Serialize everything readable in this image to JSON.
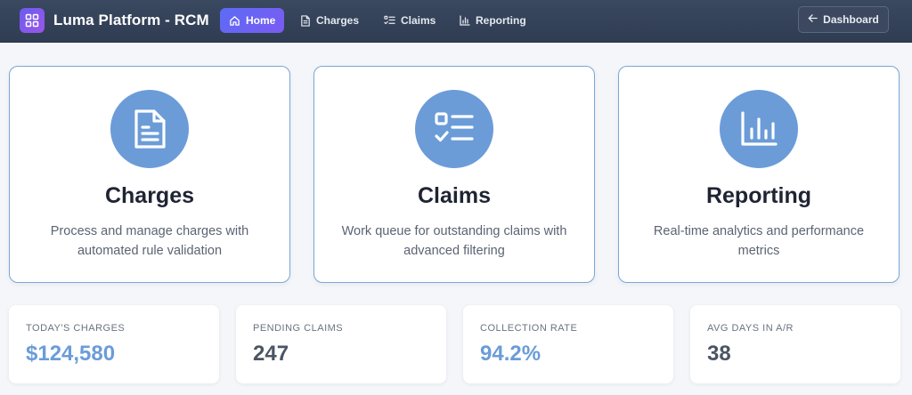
{
  "app": {
    "title": "Luma Platform - RCM"
  },
  "nav": {
    "items": [
      {
        "label": "Home",
        "icon": "home-icon",
        "active": true
      },
      {
        "label": "Charges",
        "icon": "document-icon",
        "active": false
      },
      {
        "label": "Claims",
        "icon": "checklist-icon",
        "active": false
      },
      {
        "label": "Reporting",
        "icon": "bar-chart-icon",
        "active": false
      }
    ],
    "dashboard_label": "Dashboard"
  },
  "cards": [
    {
      "title": "Charges",
      "description": "Process and manage charges with automated rule validation",
      "icon": "document-icon"
    },
    {
      "title": "Claims",
      "description": "Work queue for outstanding claims with advanced filtering",
      "icon": "checklist-icon"
    },
    {
      "title": "Reporting",
      "description": "Real-time analytics and performance metrics",
      "icon": "bar-chart-icon"
    }
  ],
  "stats": [
    {
      "label": "TODAY'S CHARGES",
      "value": "$124,580",
      "color": "#6b9cd8"
    },
    {
      "label": "PENDING CLAIMS",
      "value": "247",
      "color": "#4b5563"
    },
    {
      "label": "COLLECTION RATE",
      "value": "94.2%",
      "color": "#6b9cd8"
    },
    {
      "label": "AVG DAYS IN A/R",
      "value": "38",
      "color": "#4b5563"
    }
  ],
  "colors": {
    "topbar": "#34415a",
    "accent": "#6b9cd8",
    "nav_active": "#6366f1",
    "card_border": "#7aa7d6"
  }
}
